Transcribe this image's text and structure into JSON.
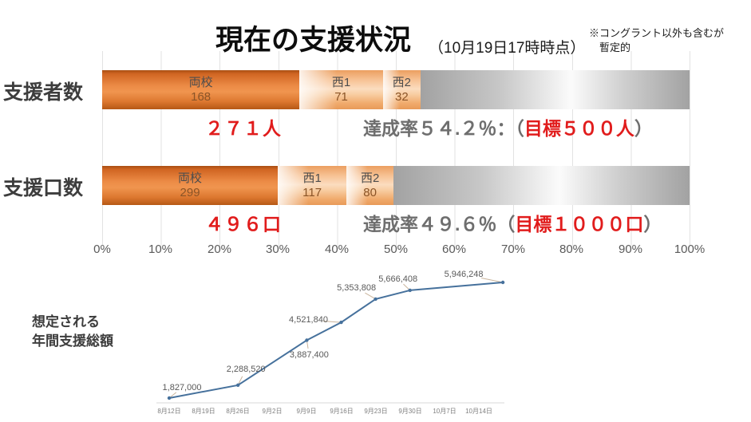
{
  "header": {
    "title": "現在の支援状況",
    "subtitle": "（10月19日17時時点）",
    "note_line1": "※コングラント以外も含むが",
    "note_line2": "暫定的"
  },
  "bars": [
    {
      "row_label": "支援者数",
      "total_text": "２７１人",
      "rate_prefix": "達成率５４.２％：（",
      "goal_text": "目標５００人",
      "rate_suffix": "）"
    },
    {
      "row_label": "支援口数",
      "total_text": "４９６口",
      "rate_prefix": "達成率４９.６％（",
      "goal_text": "目標１０００口",
      "rate_suffix": "）"
    }
  ],
  "line_chart_label": {
    "line1": "想定される",
    "line2": "年間支援総額"
  },
  "colors": {
    "accent_orange": "#e07b2e",
    "light_orange": "#f5c093",
    "remainder_gray": "#a6a6a6",
    "result_red": "#e11c1c",
    "muted_gray": "#6e6e6e",
    "line_blue": "#46719c"
  },
  "chart_data": [
    {
      "type": "bar",
      "subtype": "horizontal-stacked-progress",
      "categories": [
        "支援者数",
        "支援口数"
      ],
      "series": [
        {
          "name": "両校",
          "values": [
            168,
            299
          ]
        },
        {
          "name": "西1",
          "values": [
            71,
            117
          ]
        },
        {
          "name": "西2",
          "values": [
            32,
            80
          ]
        }
      ],
      "totals": [
        271,
        496
      ],
      "goals": [
        500,
        1000
      ],
      "achievement_percent": [
        54.2,
        49.6
      ],
      "xlim": [
        0,
        100
      ],
      "x_ticks": [
        "0%",
        "10%",
        "20%",
        "30%",
        "40%",
        "50%",
        "60%",
        "70%",
        "80%",
        "90%",
        "100%"
      ]
    },
    {
      "type": "line",
      "title": "想定される年間支援総額",
      "x_axis_labels": [
        "8月12日",
        "8月19日",
        "8月26日",
        "9月2日",
        "9月9日",
        "9月16日",
        "9月23日",
        "9月30日",
        "10月7日",
        "10月14日"
      ],
      "labels": [
        "1,827,000",
        "2,288,520",
        "3,887,400",
        "4,521,840",
        "5,353,808",
        "5,666,408",
        "5,946,248"
      ],
      "values": [
        1827000,
        2288520,
        3887400,
        4521840,
        5353808,
        5666408,
        5946248
      ],
      "tick_index": [
        0,
        2,
        4,
        5,
        6,
        7,
        9.7
      ]
    }
  ]
}
